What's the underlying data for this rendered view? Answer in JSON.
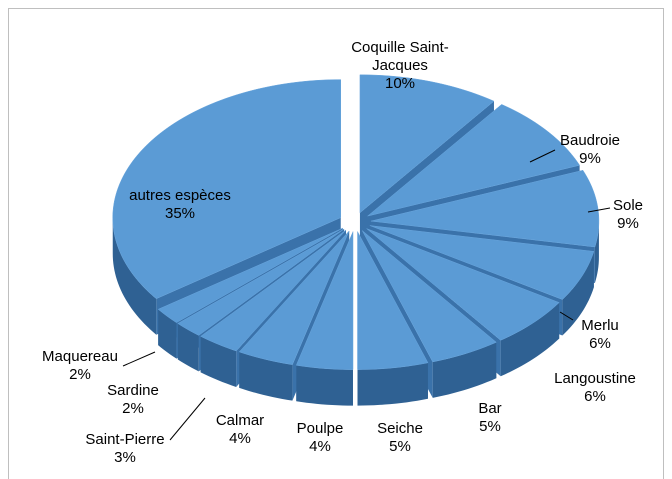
{
  "chart_data": {
    "type": "pie",
    "categories": [
      "Coquille Saint-Jacques",
      "Baudroie",
      "Sole",
      "Merlu",
      "Langoustine",
      "Bar",
      "Seiche",
      "Poulpe",
      "Calmar",
      "Saint-Pierre",
      "Sardine",
      "Maquereau",
      "autres espèces"
    ],
    "values": [
      10,
      9,
      9,
      6,
      6,
      5,
      5,
      4,
      4,
      3,
      2,
      2,
      35
    ],
    "value_labels": [
      "10%",
      "9%",
      "9%",
      "6%",
      "6%",
      "5%",
      "5%",
      "4%",
      "4%",
      "3%",
      "2%",
      "2%",
      "35%"
    ],
    "color": "#5b9bd5"
  }
}
